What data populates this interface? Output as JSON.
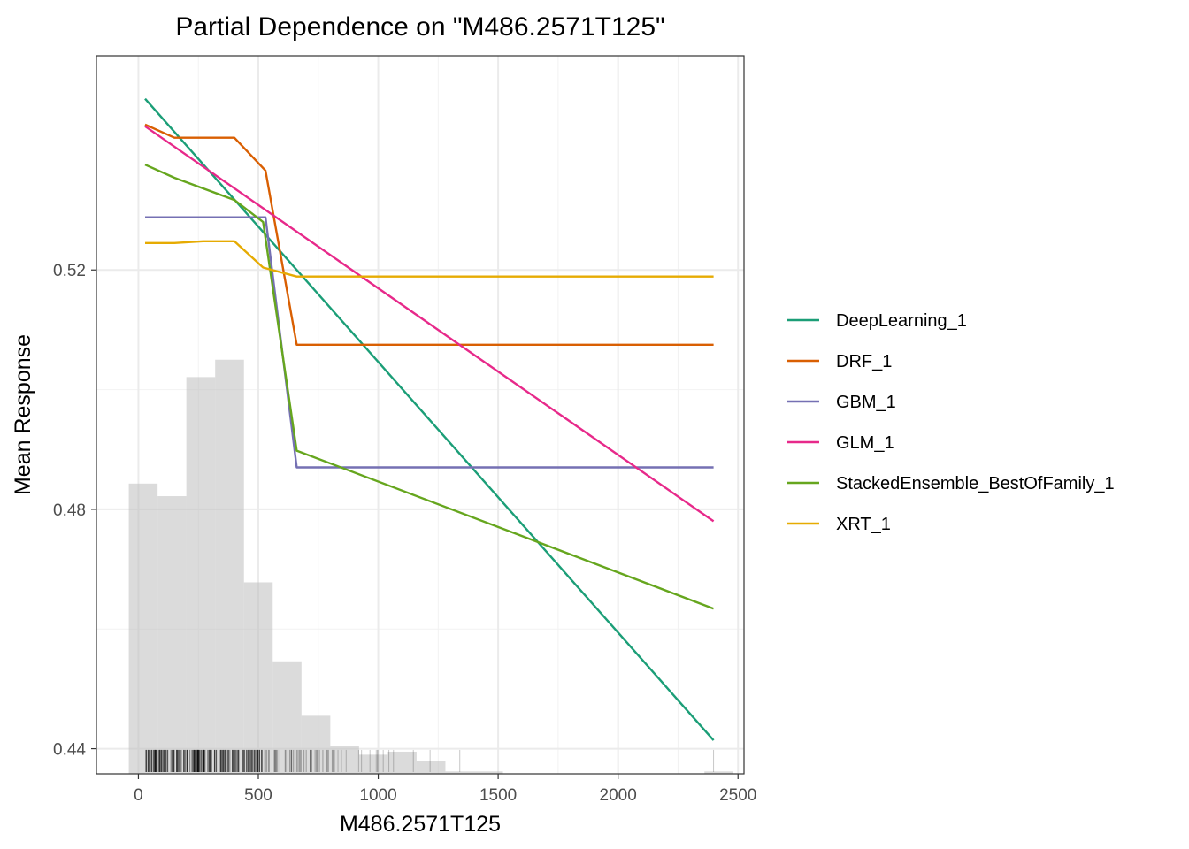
{
  "chart_data": {
    "type": "line",
    "title": "Partial Dependence on \"M486.2571T125\"",
    "xlabel": "M486.2571T125",
    "ylabel": "Mean Response",
    "xlim": [
      -175,
      2525
    ],
    "ylim": [
      0.4358,
      0.5558
    ],
    "xticks": [
      0,
      500,
      1000,
      1500,
      2000,
      2500
    ],
    "xtick_labels": [
      "0",
      "500",
      "1000",
      "1500",
      "2000",
      "2500"
    ],
    "yticks": [
      0.44,
      0.48,
      0.52
    ],
    "ytick_labels": [
      "0.44",
      "0.48",
      "0.52"
    ],
    "grid": true,
    "legend_position": "right",
    "series": [
      {
        "name": "DeepLearning_1",
        "color": "#1b9e77",
        "x": [
          28,
          2398
        ],
        "y": [
          0.5486,
          0.4414
        ]
      },
      {
        "name": "DRF_1",
        "color": "#d95f02",
        "x": [
          28,
          150,
          400,
          530,
          660,
          2398
        ],
        "y": [
          0.5443,
          0.5421,
          0.5421,
          0.5366,
          0.5075,
          0.5075
        ]
      },
      {
        "name": "GBM_1",
        "color": "#7570b3",
        "x": [
          28,
          530,
          660,
          2398
        ],
        "y": [
          0.5288,
          0.5288,
          0.487,
          0.487
        ]
      },
      {
        "name": "GLM_1",
        "color": "#e7298a",
        "x": [
          28,
          2398
        ],
        "y": [
          0.544,
          0.478
        ]
      },
      {
        "name": "StackedEnsemble_BestOfFamily_1",
        "color": "#66a61e",
        "x": [
          28,
          150,
          400,
          520,
          660,
          2398
        ],
        "y": [
          0.5376,
          0.5354,
          0.5317,
          0.528,
          0.4898,
          0.4634
        ]
      },
      {
        "name": "XRT_1",
        "color": "#e6ab02",
        "x": [
          28,
          150,
          270,
          400,
          520,
          660,
          2398
        ],
        "y": [
          0.5245,
          0.5245,
          0.5248,
          0.5248,
          0.5204,
          0.5189,
          0.5189
        ]
      }
    ],
    "histogram": {
      "bin_width": 120,
      "bin_centers": [
        20,
        140,
        260,
        380,
        500,
        620,
        740,
        860,
        980,
        1100,
        1220,
        1340,
        1460,
        1580,
        1700,
        1820,
        1940,
        2060,
        2180,
        2300,
        2420
      ],
      "heights": [
        0.4843,
        0.4822,
        0.5021,
        0.505,
        0.4678,
        0.4546,
        0.4455,
        0.4405,
        0.439,
        0.4395,
        0.438,
        0.4362,
        0.4362,
        0.4358,
        0.4358,
        0.4358,
        0.4358,
        0.4358,
        0.4358,
        0.4358,
        0.4362
      ]
    }
  }
}
